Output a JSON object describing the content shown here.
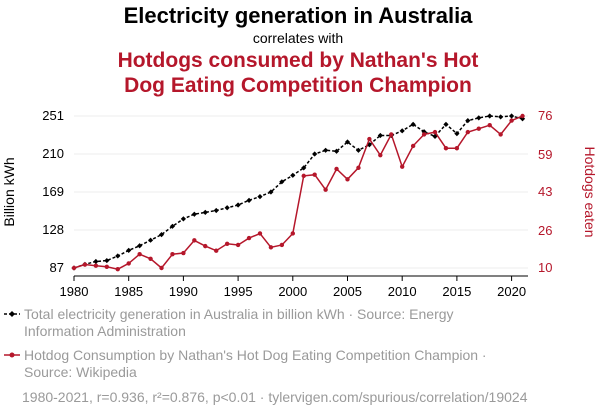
{
  "header": {
    "title": "Electricity generation in Australia",
    "connector": "correlates with",
    "title2_line1": "Hotdogs consumed by Nathan's Hot",
    "title2_line2": "Dog Eating Competition Champion"
  },
  "legend": {
    "series1_line1": "Total electricity generation in Australia in billion kWh · Source: Energy",
    "series1_line2": "Information Administration",
    "series2_line1": "Hotdog Consumption by Nathan's Hot Dog Eating Competition Champion ·",
    "series2_line2": "Source: Wikipedia"
  },
  "footer": "1980-2021, r=0.936, r²=0.876, p<0.01 · tylervigen.com/spurious/correlation/19024",
  "colors": {
    "series1": "#000000",
    "series2": "#b5172b",
    "grid": "#eeeeee",
    "muted": "#9a9a9a"
  },
  "chart_data": {
    "type": "line",
    "x": [
      1980,
      1981,
      1982,
      1983,
      1984,
      1985,
      1986,
      1987,
      1988,
      1989,
      1990,
      1991,
      1992,
      1993,
      1994,
      1995,
      1996,
      1997,
      1998,
      1999,
      2000,
      2001,
      2002,
      2003,
      2004,
      2005,
      2006,
      2007,
      2008,
      2009,
      2010,
      2011,
      2012,
      2013,
      2014,
      2015,
      2016,
      2017,
      2018,
      2019,
      2020,
      2021
    ],
    "xticks": [
      1980,
      1985,
      1990,
      1995,
      2000,
      2005,
      2010,
      2015,
      2020
    ],
    "xlim": [
      1980,
      2021.5
    ],
    "ylabel_left": "Billion kWh",
    "ylabel_right": "Hotdogs eaten",
    "yticks_left": [
      87,
      128,
      169,
      210,
      251
    ],
    "ylim_left": [
      87,
      251
    ],
    "yticks_right": [
      10,
      26,
      43,
      59,
      76
    ],
    "ylim_right": [
      10,
      76
    ],
    "grid": true,
    "series": [
      {
        "axis": "left",
        "style": "dashed-diamond",
        "values": [
          87,
          91,
          94,
          95,
          100,
          106,
          111,
          117,
          123,
          132,
          140,
          145,
          147,
          149,
          152,
          155,
          160,
          164,
          169,
          180,
          187,
          195,
          210,
          214,
          213,
          223,
          214,
          220,
          230,
          230,
          235,
          242,
          234,
          229,
          242,
          232,
          246,
          249,
          251,
          250,
          251,
          248
        ]
      },
      {
        "axis": "right",
        "style": "solid-dot",
        "values": [
          10,
          11.5,
          11,
          10.5,
          9.5,
          12,
          16,
          14,
          10,
          16,
          16.5,
          22,
          19.5,
          17.5,
          20.5,
          20,
          23,
          25,
          19,
          20,
          25,
          50,
          50.5,
          44,
          53,
          48.5,
          53.5,
          66,
          59,
          68,
          54,
          63,
          68,
          69,
          62,
          62,
          69,
          70.5,
          72,
          68,
          74,
          76
        ]
      }
    ]
  }
}
